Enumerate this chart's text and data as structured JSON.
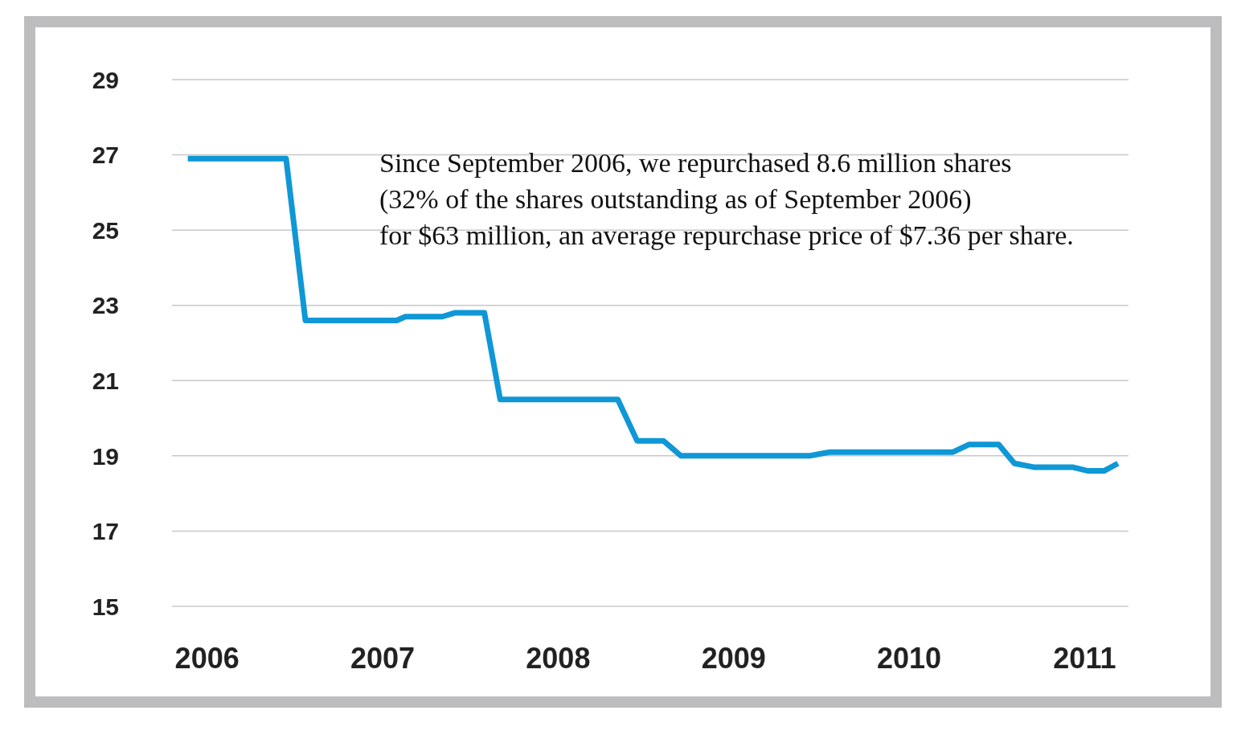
{
  "chart_data": {
    "type": "line",
    "x": [
      2005.89,
      2006.45,
      2006.56,
      2007.08,
      2007.13,
      2007.34,
      2007.41,
      2007.58,
      2007.67,
      2008.34,
      2008.45,
      2008.6,
      2008.7,
      2009.43,
      2009.55,
      2010.25,
      2010.34,
      2010.51,
      2010.6,
      2010.71,
      2010.93,
      2011.02,
      2011.11,
      2011.19
    ],
    "series": [
      {
        "color": "#0f97d6",
        "values": [
          26.9,
          26.9,
          22.6,
          22.6,
          22.7,
          22.7,
          22.8,
          22.8,
          20.5,
          20.5,
          19.4,
          19.4,
          19.0,
          19.0,
          19.1,
          19.1,
          19.3,
          19.3,
          18.8,
          18.7,
          18.7,
          18.6,
          18.6,
          18.8
        ]
      }
    ],
    "xlim": [
      2005.8,
      2011.25
    ],
    "xticks": [
      2006,
      2007,
      2008,
      2009,
      2010,
      2011
    ],
    "ylim": [
      15,
      29
    ],
    "yticks": [
      15,
      17,
      19,
      21,
      23,
      25,
      27,
      29
    ],
    "grid": "y",
    "legend": false,
    "marker": "none",
    "line_style": "solid",
    "annotations": [
      "Since September 2006, we repurchased 8.6 million shares",
      "(32% of the shares outstanding as of September 2006)",
      "for $63 million, an average repurchase price of $7.36 per share."
    ]
  }
}
